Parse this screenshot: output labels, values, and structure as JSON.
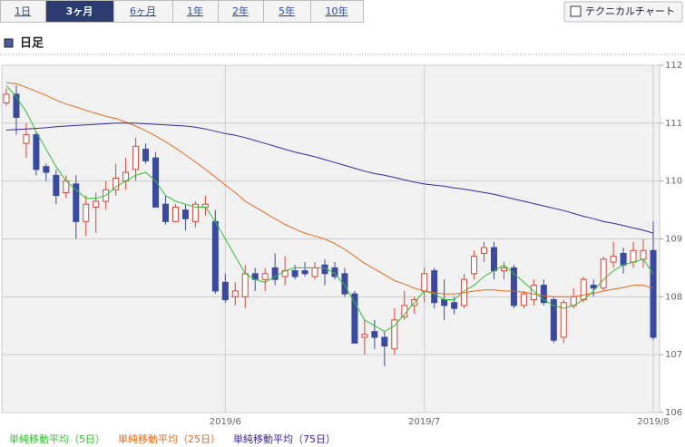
{
  "tabs": [
    "1日",
    "3ヶ月",
    "6ヶ月",
    "1年",
    "2年",
    "5年",
    "10年"
  ],
  "active_tab": 1,
  "button": "テクニカルチャート",
  "section_title": "日足",
  "chart_data": {
    "type": "candlestick",
    "categories": [
      null,
      null,
      null,
      null,
      null,
      null,
      null,
      null,
      null,
      null,
      null,
      null,
      null,
      null,
      null,
      null,
      null,
      null,
      null,
      null,
      null,
      null,
      "2019/6",
      null,
      null,
      null,
      null,
      null,
      null,
      null,
      null,
      null,
      null,
      null,
      null,
      null,
      null,
      null,
      null,
      null,
      null,
      null,
      "2019/7",
      null,
      null,
      null,
      null,
      null,
      null,
      null,
      null,
      null,
      null,
      null,
      null,
      null,
      null,
      null,
      null,
      null,
      null,
      null,
      null,
      null,
      null,
      "2019/8"
    ],
    "open": [
      111.35,
      111.5,
      110.65,
      110.8,
      110.25,
      110.1,
      109.8,
      109.95,
      109.3,
      109.55,
      109.65,
      109.85,
      110.0,
      110.2,
      110.55,
      110.4,
      109.6,
      109.3,
      109.5,
      109.3,
      109.55,
      109.3,
      108.25,
      108.0,
      108.0,
      108.4,
      108.3,
      108.5,
      108.35,
      108.45,
      108.45,
      108.35,
      108.55,
      108.5,
      108.4,
      108.05,
      107.3,
      107.4,
      107.3,
      107.1,
      107.65,
      107.85,
      108.1,
      108.45,
      107.95,
      107.9,
      107.85,
      108.4,
      108.75,
      108.85,
      108.45,
      108.5,
      107.85,
      107.95,
      108.2,
      107.95,
      107.3,
      107.85,
      107.95,
      108.2,
      108.15,
      108.6,
      108.75,
      108.6,
      108.65,
      108.8
    ],
    "high": [
      111.6,
      111.65,
      111.0,
      110.85,
      110.3,
      110.2,
      110.1,
      110.1,
      109.75,
      109.8,
      110.0,
      110.3,
      110.4,
      110.75,
      110.65,
      110.5,
      109.75,
      109.6,
      109.6,
      109.65,
      109.75,
      109.5,
      108.4,
      108.25,
      108.55,
      108.5,
      108.5,
      108.75,
      108.7,
      108.55,
      108.6,
      108.6,
      108.65,
      108.6,
      108.5,
      108.1,
      107.6,
      107.6,
      107.4,
      107.8,
      108.1,
      108.0,
      108.5,
      108.5,
      108.3,
      108.0,
      108.4,
      108.8,
      108.95,
      108.95,
      108.6,
      108.55,
      108.1,
      108.3,
      108.3,
      108.0,
      107.95,
      108.15,
      108.35,
      108.3,
      108.7,
      108.95,
      108.85,
      108.95,
      109.0,
      109.3
    ],
    "low": [
      111.3,
      110.8,
      110.4,
      110.1,
      110.0,
      109.6,
      109.7,
      109.0,
      109.05,
      109.1,
      109.5,
      109.75,
      109.85,
      110.0,
      110.3,
      109.6,
      109.25,
      109.3,
      109.15,
      109.2,
      109.4,
      108.05,
      107.9,
      107.85,
      107.8,
      108.1,
      108.1,
      108.2,
      108.2,
      108.3,
      108.35,
      108.3,
      108.2,
      108.3,
      108.0,
      107.2,
      107.0,
      107.1,
      106.8,
      107.0,
      107.6,
      107.7,
      107.9,
      107.8,
      107.6,
      107.7,
      107.8,
      108.3,
      108.6,
      108.3,
      108.3,
      107.8,
      107.8,
      107.85,
      107.85,
      107.2,
      107.2,
      107.8,
      107.9,
      108.0,
      108.1,
      108.5,
      108.4,
      108.5,
      108.5,
      107.25
    ],
    "close": [
      111.5,
      111.1,
      110.8,
      110.2,
      110.15,
      109.75,
      110.0,
      109.3,
      109.6,
      109.65,
      109.85,
      110.05,
      110.15,
      110.6,
      110.35,
      109.55,
      109.3,
      109.55,
      109.35,
      109.6,
      109.6,
      108.1,
      107.95,
      108.1,
      108.4,
      108.3,
      108.4,
      108.3,
      108.45,
      108.35,
      108.4,
      108.5,
      108.4,
      108.35,
      108.05,
      107.2,
      107.35,
      107.3,
      107.15,
      107.6,
      107.85,
      107.95,
      108.4,
      107.9,
      107.85,
      107.8,
      108.3,
      108.7,
      108.85,
      108.45,
      108.5,
      107.85,
      108.05,
      108.2,
      107.9,
      107.25,
      107.9,
      108.0,
      108.3,
      108.15,
      108.65,
      108.7,
      108.55,
      108.8,
      108.8,
      107.3
    ],
    "up_color": "#d9443a",
    "down_color": "#3a4a9e",
    "series": [
      {
        "name": "単純移動平均（5日）",
        "color": "#2fc02f",
        "values": [
          111.65,
          111.45,
          111.2,
          110.85,
          110.55,
          110.25,
          110.0,
          109.85,
          109.7,
          109.7,
          109.75,
          109.9,
          110.0,
          110.1,
          110.15,
          110.0,
          109.75,
          109.65,
          109.6,
          109.55,
          109.55,
          109.3,
          109.0,
          108.7,
          108.4,
          108.3,
          108.25,
          108.35,
          108.45,
          108.5,
          108.5,
          108.5,
          108.5,
          108.4,
          108.2,
          107.9,
          107.6,
          107.5,
          107.4,
          107.5,
          107.7,
          107.9,
          108.1,
          108.05,
          107.95,
          107.95,
          108.1,
          108.2,
          108.35,
          108.45,
          108.55,
          108.4,
          108.25,
          108.1,
          107.95,
          107.85,
          107.8,
          107.85,
          107.95,
          108.1,
          108.3,
          108.45,
          108.55,
          108.6,
          108.65,
          108.4
        ]
      },
      {
        "name": "単純移動平均（25日）",
        "color": "#e8691c",
        "values": [
          111.7,
          111.68,
          111.62,
          111.55,
          111.48,
          111.4,
          111.33,
          111.28,
          111.22,
          111.17,
          111.12,
          111.08,
          111.02,
          110.95,
          110.87,
          110.78,
          110.68,
          110.57,
          110.45,
          110.33,
          110.2,
          110.07,
          109.93,
          109.8,
          109.65,
          109.55,
          109.45,
          109.35,
          109.25,
          109.17,
          109.1,
          109.05,
          109.0,
          108.92,
          108.82,
          108.7,
          108.58,
          108.48,
          108.38,
          108.28,
          108.22,
          108.15,
          108.1,
          108.07,
          108.05,
          108.05,
          108.07,
          108.1,
          108.12,
          108.12,
          108.1,
          108.1,
          108.08,
          108.05,
          108.02,
          108.0,
          108.0,
          108.0,
          108.03,
          108.06,
          108.1,
          108.13,
          108.16,
          108.2,
          108.2,
          108.15
        ]
      },
      {
        "name": "単純移動平均（75日）",
        "color": "#3d22a3",
        "values": [
          110.88,
          110.89,
          110.9,
          110.91,
          110.92,
          110.94,
          110.95,
          110.96,
          110.97,
          110.98,
          110.99,
          111.0,
          111.0,
          111.0,
          110.99,
          110.98,
          110.97,
          110.96,
          110.95,
          110.93,
          110.9,
          110.86,
          110.82,
          110.79,
          110.75,
          110.7,
          110.65,
          110.6,
          110.55,
          110.5,
          110.46,
          110.42,
          110.37,
          110.32,
          110.27,
          110.22,
          110.17,
          110.13,
          110.1,
          110.06,
          110.02,
          109.98,
          109.95,
          109.93,
          109.91,
          109.88,
          109.86,
          109.83,
          109.8,
          109.77,
          109.73,
          109.69,
          109.65,
          109.61,
          109.57,
          109.53,
          109.49,
          109.44,
          109.39,
          109.35,
          109.3,
          109.27,
          109.23,
          109.19,
          109.15,
          109.1
        ]
      }
    ],
    "ylim": [
      106,
      112
    ],
    "yticks": [
      106,
      107,
      108,
      109,
      110,
      111,
      112
    ],
    "grid": true
  }
}
